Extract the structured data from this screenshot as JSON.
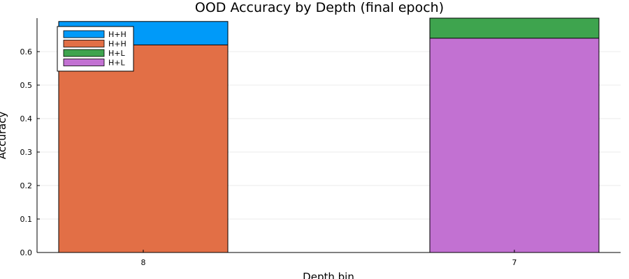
{
  "chart_data": {
    "type": "bar",
    "title": "OOD Accuracy by Depth (final epoch)",
    "xlabel": "Depth bin",
    "ylabel": "Accuracy",
    "categories": [
      "8",
      "7"
    ],
    "ylim": [
      0,
      0.7
    ],
    "yticks": [
      "0.0",
      "0.1",
      "0.2",
      "0.3",
      "0.4",
      "0.5",
      "0.6"
    ],
    "grid": true,
    "legend_position": "top-left",
    "series": [
      {
        "name": "H+H",
        "color": "#009AF9",
        "category": "8",
        "value": 0.69
      },
      {
        "name": "H+H",
        "color": "#E26F46",
        "category": "8",
        "value": 0.62
      },
      {
        "name": "H+L",
        "color": "#3EA44E",
        "category": "7",
        "value": 0.7
      },
      {
        "name": "H+L",
        "color": "#C271D2",
        "category": "7",
        "value": 0.64
      }
    ]
  }
}
